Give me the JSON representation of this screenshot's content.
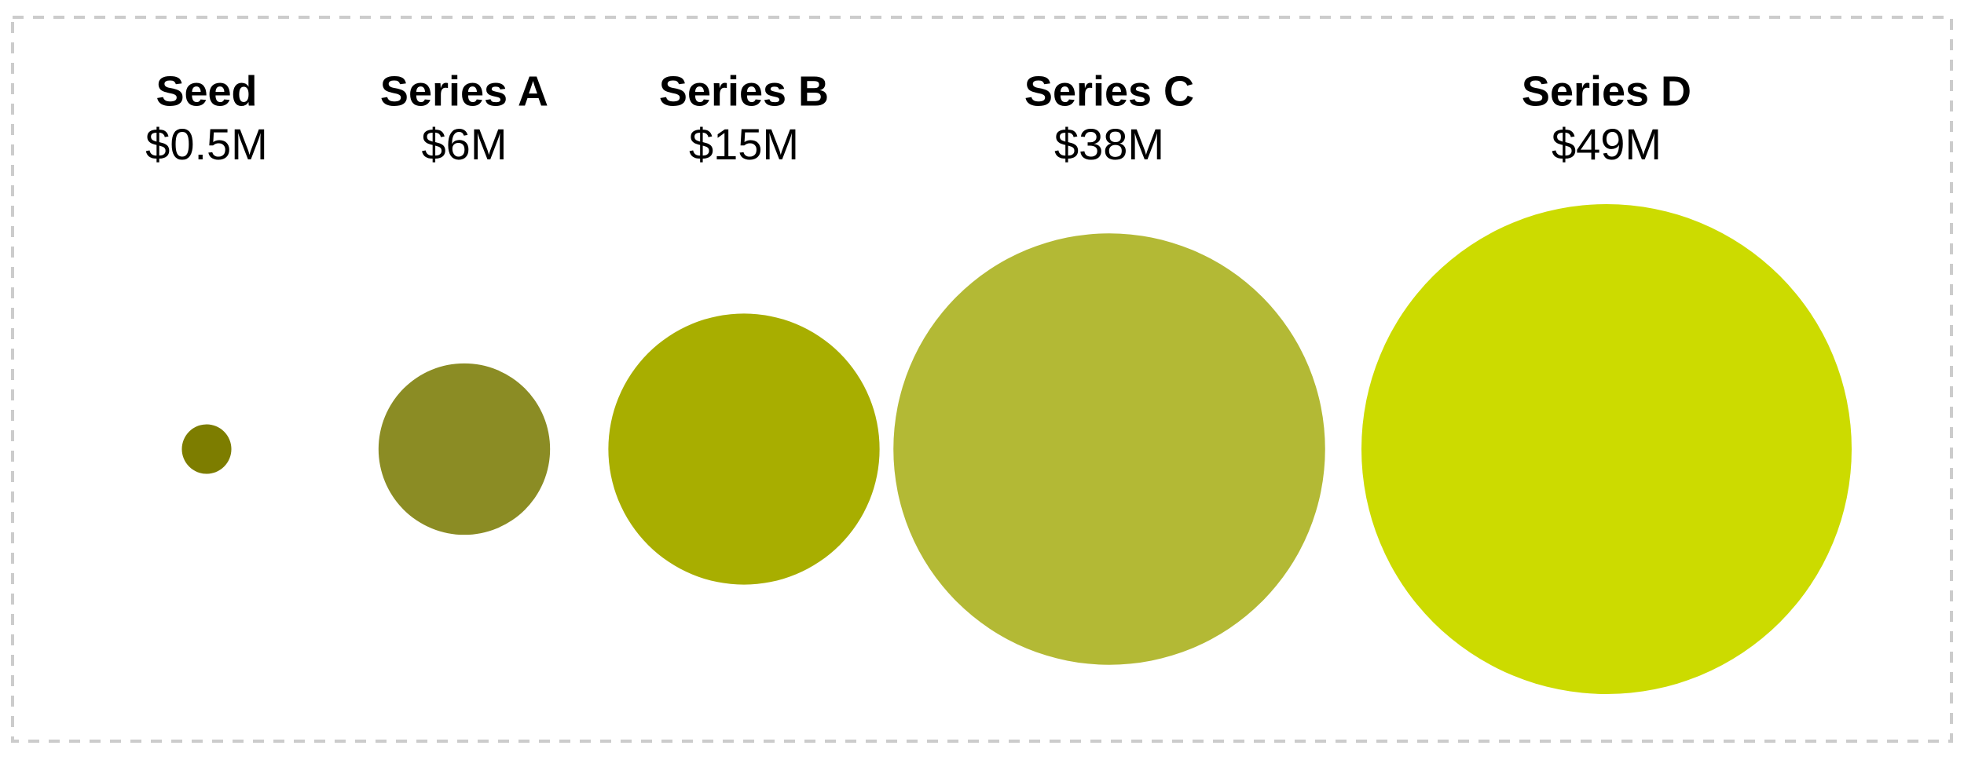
{
  "chart_data": {
    "type": "bubble",
    "categories": [
      "Seed",
      "Series A",
      "Series B",
      "Series C",
      "Series D"
    ],
    "values": [
      0.5,
      6,
      15,
      38,
      49
    ],
    "value_labels": [
      "$0.5M",
      "$6M",
      "$15M",
      "$38M",
      "$49M"
    ],
    "colors": [
      "#7d7d00",
      "#8b8c24",
      "#a8ae00",
      "#b3b935",
      "#ccdb00"
    ]
  }
}
